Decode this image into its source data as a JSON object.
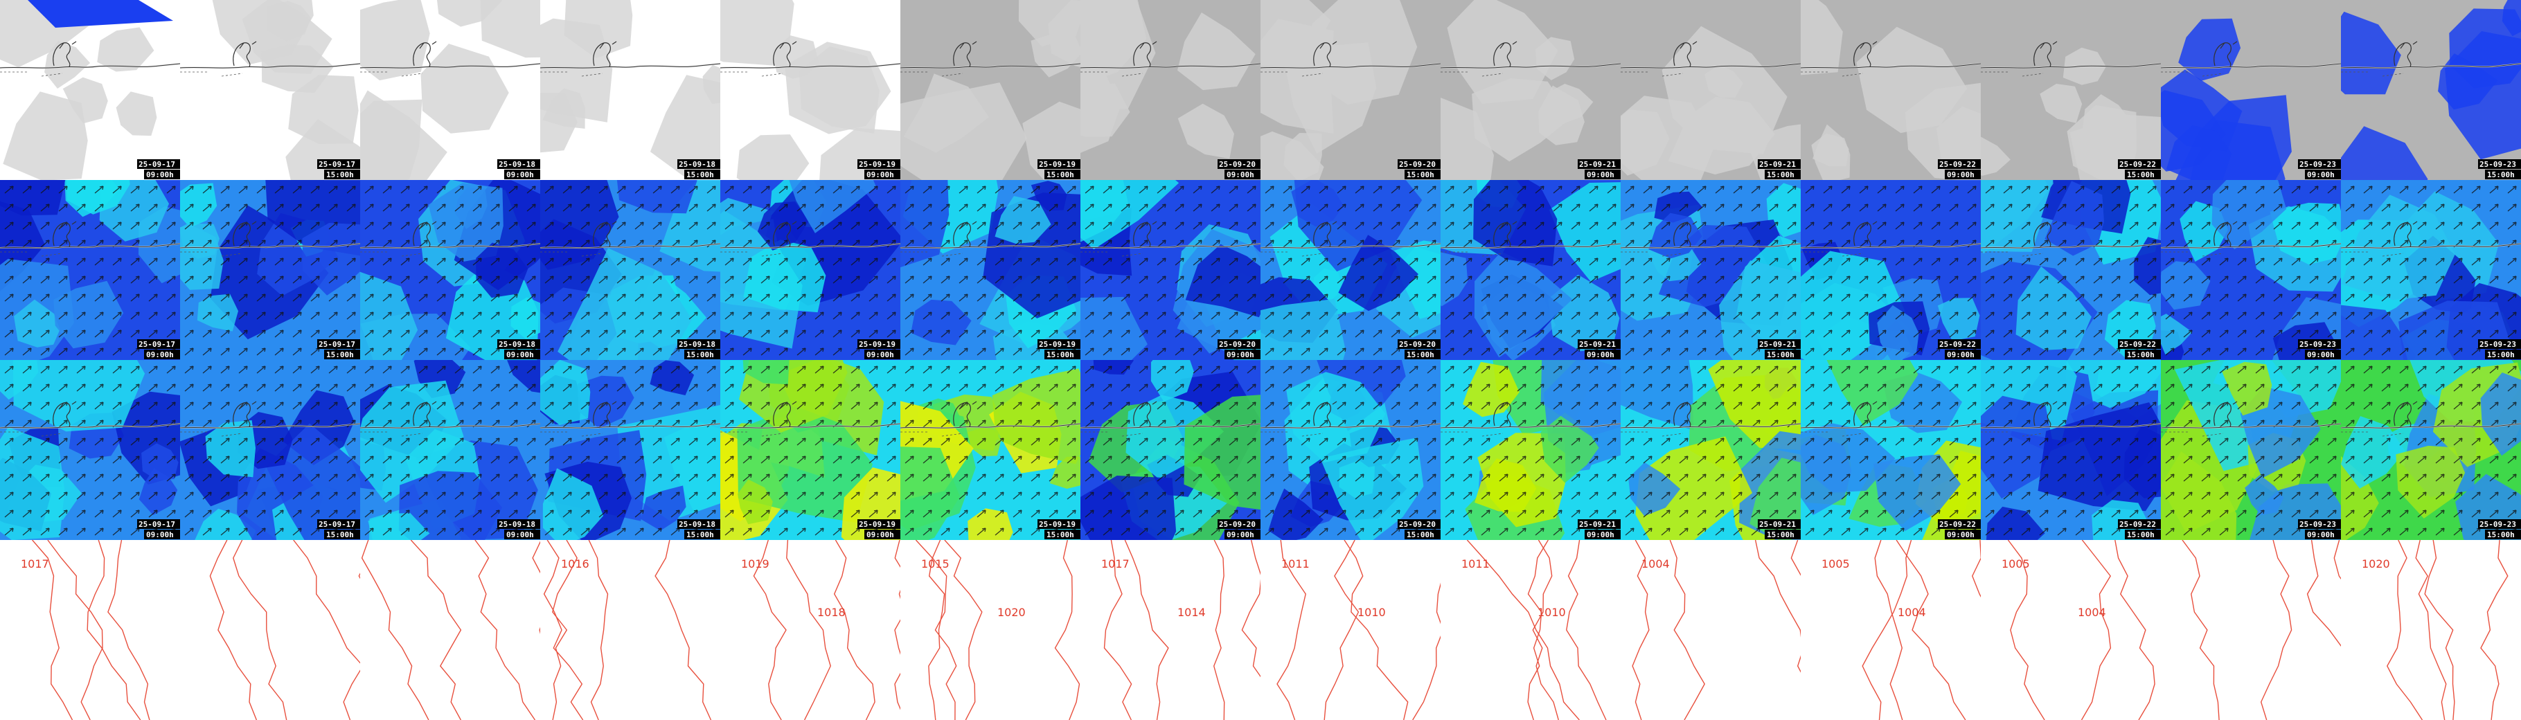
{
  "columns": [
    {
      "date": "25-09-17",
      "time": "09:00h"
    },
    {
      "date": "25-09-17",
      "time": "15:00h"
    },
    {
      "date": "25-09-18",
      "time": "09:00h"
    },
    {
      "date": "25-09-18",
      "time": "15:00h"
    },
    {
      "date": "25-09-19",
      "time": "09:00h"
    },
    {
      "date": "25-09-19",
      "time": "15:00h"
    },
    {
      "date": "25-09-20",
      "time": "09:00h"
    },
    {
      "date": "25-09-20",
      "time": "15:00h"
    },
    {
      "date": "25-09-21",
      "time": "09:00h"
    },
    {
      "date": "25-09-21",
      "time": "15:00h"
    },
    {
      "date": "25-09-22",
      "time": "09:00h"
    },
    {
      "date": "25-09-22",
      "time": "15:00h"
    },
    {
      "date": "25-09-23",
      "time": "09:00h"
    },
    {
      "date": "25-09-23",
      "time": "15:00h"
    }
  ],
  "isobars": [
    [
      "1017"
    ],
    [],
    [],
    [
      "1016"
    ],
    [
      "1019",
      "1018"
    ],
    [
      "1015",
      "1020"
    ],
    [
      "1017",
      "1014"
    ],
    [
      "1011",
      "1010"
    ],
    [
      "1011",
      "1010"
    ],
    [
      "1004"
    ],
    [
      "1005",
      "1004"
    ],
    [
      "1005",
      "1004"
    ],
    [],
    [
      "1020"
    ]
  ]
}
